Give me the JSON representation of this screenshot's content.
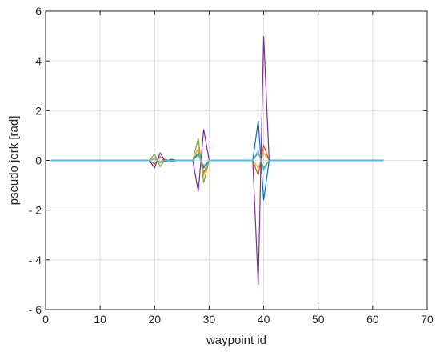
{
  "chart_data": {
    "type": "line",
    "title": "",
    "xlabel": "waypoint id",
    "ylabel": "pseudo jerk [rad]",
    "xlim": [
      0,
      70
    ],
    "ylim": [
      -6,
      6
    ],
    "xticks": [
      0,
      10,
      20,
      30,
      40,
      50,
      60,
      70
    ],
    "yticks": [
      -6,
      -4,
      -2,
      0,
      2,
      4,
      6
    ],
    "xtick_labels": [
      "0",
      "10",
      "20",
      "30",
      "40",
      "50",
      "60",
      "70"
    ],
    "ytick_labels": [
      "- 6",
      "- 4",
      "- 2",
      "0",
      "2",
      "4",
      "6"
    ],
    "grid": true,
    "series": [
      {
        "color": "#0072BD",
        "x": [
          1,
          19,
          20,
          21,
          22,
          23,
          24,
          27,
          28,
          29,
          30,
          38,
          39,
          40,
          41,
          62
        ],
        "y": [
          0,
          0,
          0.1,
          -0.1,
          0.05,
          -0.05,
          0,
          0,
          0.3,
          -0.3,
          0,
          0,
          1.6,
          -1.6,
          0,
          0
        ]
      },
      {
        "color": "#D95319",
        "x": [
          1,
          19,
          20,
          21,
          22,
          23,
          24,
          27,
          28,
          29,
          30,
          38,
          39,
          40,
          41,
          62
        ],
        "y": [
          0,
          0,
          -0.15,
          0.15,
          -0.05,
          0.05,
          0,
          0,
          0.5,
          -0.5,
          0,
          0,
          -0.6,
          0.6,
          0,
          0
        ]
      },
      {
        "color": "#EDB120",
        "x": [
          1,
          19,
          20,
          21,
          22,
          23,
          24,
          27,
          28,
          29,
          30,
          38,
          39,
          40,
          41,
          62
        ],
        "y": [
          0,
          0,
          0.1,
          -0.1,
          -0.05,
          0.05,
          0,
          0,
          0.5,
          -0.6,
          0,
          0,
          -0.3,
          0.3,
          0,
          0
        ]
      },
      {
        "color": "#7E2F8E",
        "x": [
          1,
          19,
          20,
          21,
          22,
          23,
          24,
          27,
          28,
          29,
          30,
          38,
          39,
          40,
          41,
          62
        ],
        "y": [
          0,
          0,
          -0.3,
          0.3,
          -0.05,
          0.05,
          0,
          0,
          -1.25,
          1.25,
          0,
          0,
          -5,
          5,
          0,
          0
        ]
      },
      {
        "color": "#77AC30",
        "x": [
          1,
          19,
          20,
          21,
          22,
          23,
          24,
          27,
          28,
          29,
          30,
          38,
          39,
          40,
          41,
          62
        ],
        "y": [
          0,
          0,
          0.25,
          -0.25,
          0.05,
          -0.05,
          0,
          0,
          0.9,
          -0.9,
          0,
          0,
          0.3,
          -0.3,
          0,
          0
        ]
      },
      {
        "color": "#4DBEEE",
        "x": [
          1,
          19,
          20,
          21,
          22,
          23,
          24,
          27,
          28,
          29,
          30,
          38,
          39,
          40,
          41,
          62
        ],
        "y": [
          0,
          0,
          0.05,
          -0.05,
          0,
          0,
          0,
          0,
          0.2,
          -0.2,
          0,
          0,
          0.4,
          -0.4,
          0,
          0
        ]
      }
    ]
  }
}
